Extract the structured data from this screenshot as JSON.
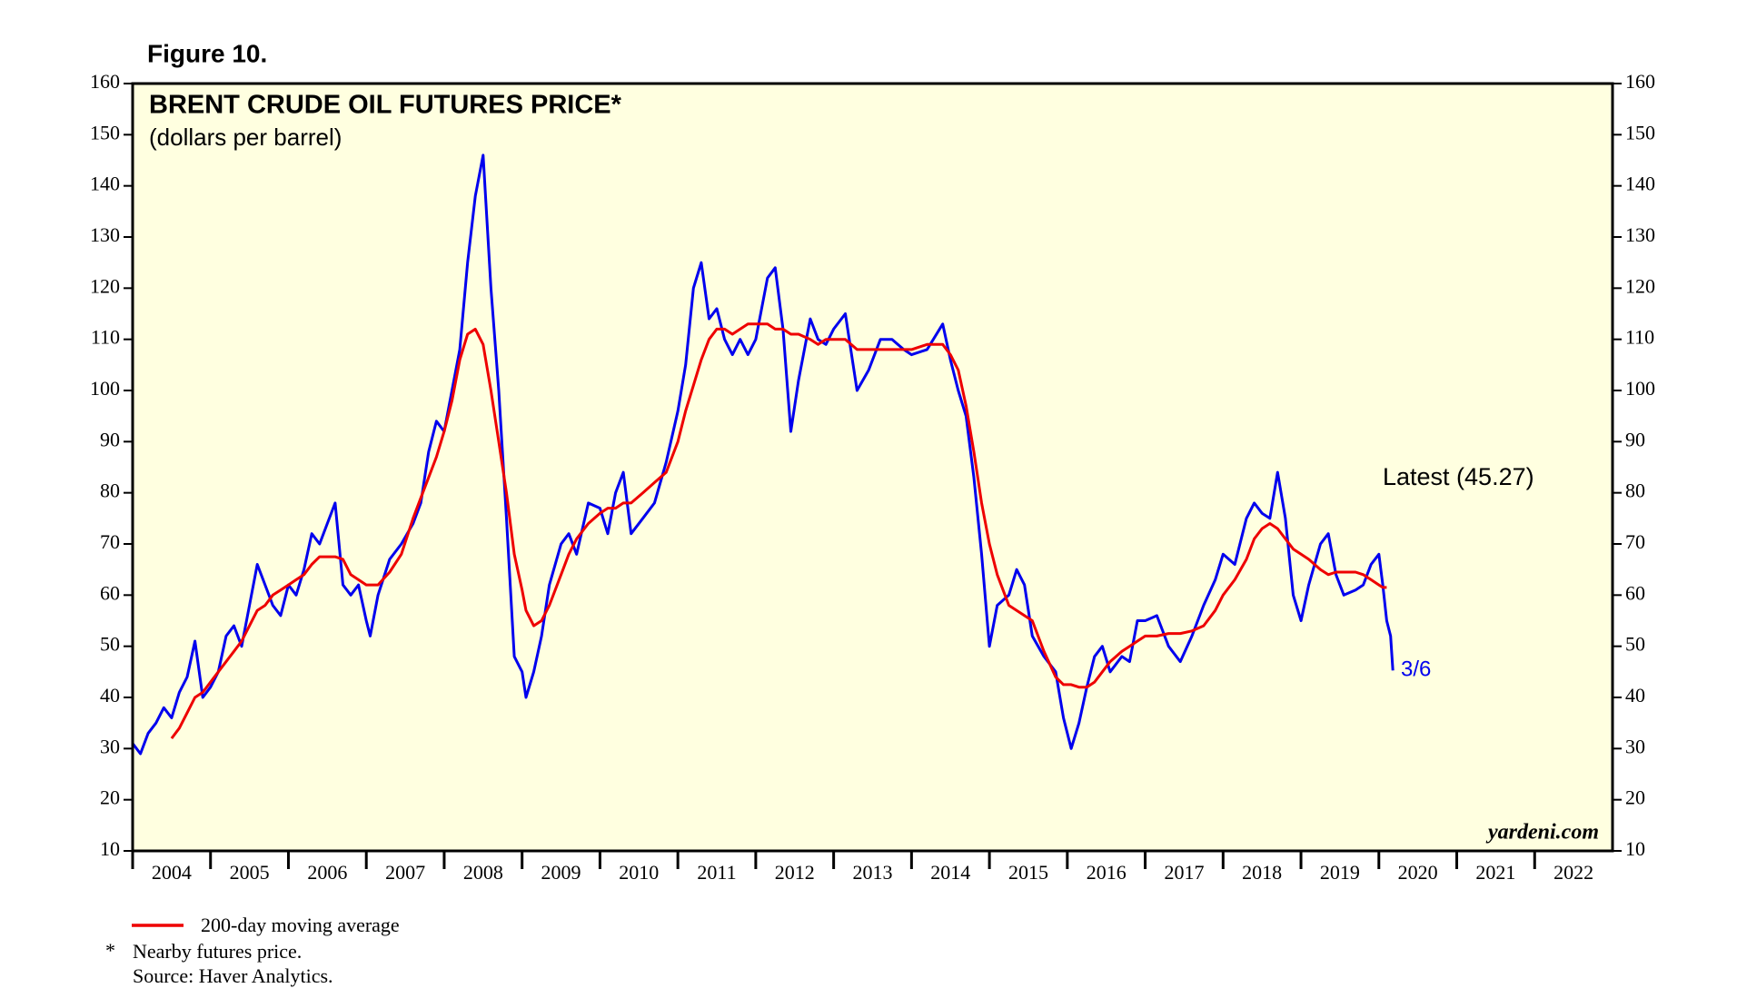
{
  "chart_data": {
    "type": "line",
    "figure_label": "Figure 10.",
    "title": "BRENT CRUDE OIL FUTURES PRICE*",
    "subtitle": "(dollars per barrel)",
    "x": [
      2004.0,
      2004.1,
      2004.2,
      2004.3,
      2004.4,
      2004.5,
      2004.6,
      2004.7,
      2004.8,
      2004.9,
      2005.0,
      2005.1,
      2005.2,
      2005.3,
      2005.4,
      2005.5,
      2005.6,
      2005.7,
      2005.8,
      2005.9,
      2006.0,
      2006.1,
      2006.2,
      2006.3,
      2006.4,
      2006.5,
      2006.6,
      2006.7,
      2006.8,
      2006.9,
      2007.0,
      2007.05,
      2007.15,
      2007.3,
      2007.45,
      2007.6,
      2007.7,
      2007.8,
      2007.9,
      2008.0,
      2008.1,
      2008.2,
      2008.3,
      2008.4,
      2008.5,
      2008.6,
      2008.7,
      2008.8,
      2008.9,
      2009.0,
      2009.05,
      2009.15,
      2009.25,
      2009.35,
      2009.5,
      2009.6,
      2009.7,
      2009.85,
      2010.0,
      2010.1,
      2010.2,
      2010.3,
      2010.4,
      2010.55,
      2010.7,
      2010.85,
      2011.0,
      2011.1,
      2011.2,
      2011.3,
      2011.4,
      2011.5,
      2011.6,
      2011.7,
      2011.8,
      2011.9,
      2012.0,
      2012.15,
      2012.25,
      2012.35,
      2012.45,
      2012.55,
      2012.7,
      2012.8,
      2012.9,
      2013.0,
      2013.15,
      2013.3,
      2013.45,
      2013.6,
      2013.75,
      2013.9,
      2014.0,
      2014.2,
      2014.4,
      2014.5,
      2014.6,
      2014.7,
      2014.8,
      2014.9,
      2015.0,
      2015.1,
      2015.25,
      2015.35,
      2015.45,
      2015.55,
      2015.7,
      2015.85,
      2015.95,
      2016.05,
      2016.15,
      2016.25,
      2016.35,
      2016.45,
      2016.55,
      2016.7,
      2016.8,
      2016.9,
      2017.0,
      2017.15,
      2017.3,
      2017.45,
      2017.6,
      2017.75,
      2017.9,
      2018.0,
      2018.15,
      2018.3,
      2018.4,
      2018.5,
      2018.6,
      2018.7,
      2018.8,
      2018.9,
      2019.0,
      2019.1,
      2019.25,
      2019.35,
      2019.45,
      2019.55,
      2019.7,
      2019.8,
      2019.9,
      2020.0,
      2020.05,
      2020.1,
      2020.15,
      2020.18
    ],
    "series": [
      {
        "name": "Brent crude oil futures price",
        "color": "#0000ee",
        "width": 3,
        "values": [
          31,
          29,
          33,
          35,
          38,
          36,
          41,
          44,
          51,
          40,
          42,
          45,
          52,
          54,
          50,
          58,
          66,
          62,
          58,
          56,
          62,
          60,
          65,
          72,
          70,
          74,
          78,
          62,
          60,
          62,
          55,
          52,
          60,
          67,
          70,
          74,
          78,
          88,
          94,
          92,
          100,
          108,
          125,
          138,
          146,
          120,
          100,
          75,
          48,
          45,
          40,
          45,
          52,
          62,
          70,
          72,
          68,
          78,
          77,
          72,
          80,
          84,
          72,
          75,
          78,
          86,
          96,
          105,
          120,
          125,
          114,
          116,
          110,
          107,
          110,
          107,
          110,
          122,
          124,
          112,
          92,
          102,
          114,
          110,
          109,
          112,
          115,
          100,
          104,
          110,
          110,
          108,
          107,
          108,
          113,
          106,
          100,
          95,
          83,
          68,
          50,
          58,
          60,
          65,
          62,
          52,
          48,
          45,
          36,
          30,
          35,
          42,
          48,
          50,
          45,
          48,
          47,
          55,
          55,
          56,
          50,
          47,
          52,
          58,
          63,
          68,
          66,
          75,
          78,
          76,
          75,
          84,
          75,
          60,
          55,
          62,
          70,
          72,
          64,
          60,
          61,
          62,
          66,
          68,
          62,
          55,
          52,
          45.27
        ]
      },
      {
        "name": "200-day moving average",
        "color": "#ee0000",
        "width": 3,
        "values": [
          null,
          null,
          null,
          null,
          null,
          32,
          34,
          37,
          40,
          41,
          43,
          45,
          47,
          49,
          51,
          54,
          57,
          58,
          60,
          61,
          62,
          63,
          64,
          66,
          67.5,
          67.5,
          67.5,
          67,
          64,
          63,
          62,
          62,
          62,
          64.5,
          68,
          75,
          79,
          83,
          87,
          92,
          98,
          106,
          111,
          112,
          109,
          100,
          90,
          80,
          68,
          61,
          57,
          54,
          55,
          58,
          64,
          68,
          71,
          74,
          76,
          77,
          77,
          78,
          78,
          80,
          82,
          84,
          90,
          96,
          101,
          106,
          110,
          112,
          112,
          111,
          112,
          113,
          113,
          113,
          112,
          112,
          111,
          111,
          110,
          109,
          110,
          110,
          110,
          108,
          108,
          108,
          108,
          108,
          108,
          109,
          109,
          107,
          104,
          97,
          88,
          78,
          70,
          64,
          58,
          57,
          56,
          55,
          49,
          44,
          42.5,
          42.5,
          42,
          42,
          43,
          45,
          47,
          49,
          50,
          51,
          52,
          52,
          52.5,
          52.5,
          53,
          54,
          57,
          60,
          63,
          67,
          71,
          73,
          74,
          73,
          71,
          69,
          68,
          67,
          65,
          64,
          64.5,
          64.5,
          64.5,
          64,
          63,
          62,
          61.5,
          61.5,
          null,
          null
        ]
      }
    ],
    "xlim": [
      2004,
      2023
    ],
    "xticks": [
      2004,
      2005,
      2006,
      2007,
      2008,
      2009,
      2010,
      2011,
      2012,
      2013,
      2014,
      2015,
      2016,
      2017,
      2018,
      2019,
      2020,
      2021,
      2022
    ],
    "ylim": [
      10,
      160
    ],
    "yticks": [
      10,
      20,
      30,
      40,
      50,
      60,
      70,
      80,
      90,
      100,
      110,
      120,
      130,
      140,
      150,
      160
    ],
    "background": "#ffffe0",
    "annotations": {
      "latest": "Latest (45.27)",
      "date": "3/6",
      "source_site": "yardeni.com"
    },
    "legend_label": "200-day moving average",
    "footnote_mark": "*",
    "footnote": "Nearby futures price.",
    "source": "Source: Haver Analytics."
  }
}
